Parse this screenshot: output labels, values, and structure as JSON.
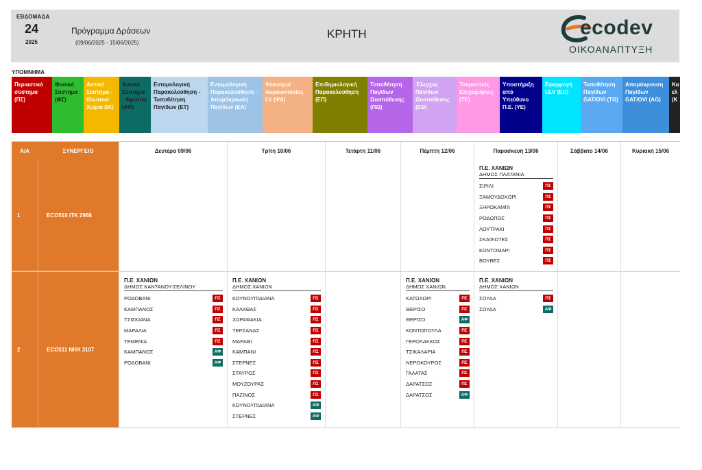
{
  "header": {
    "week_label": "ΕΒΔΟΜΑΔΑ",
    "week_number": "24",
    "year": "2025",
    "program_title": "Πρόγραμμα Δράσεων",
    "date_range": "(09/06/2025 - 15/06/2025)",
    "region": "ΚΡΗΤΗ",
    "logo_text": "ecodev",
    "logo_sub": "ΟΙΚΟΑΝΑΠΤΥΞΗ"
  },
  "legend": {
    "title": "ΥΠΟΜΝΗΜΑ",
    "items": [
      {
        "label": "Περιαστικό σύστημα (ΠΣ)",
        "color": "#c00000",
        "text_dark": false
      },
      {
        "label": "Φυσικό Σύστημα (ΦΣ)",
        "color": "#2ebd2e",
        "text_dark": true
      },
      {
        "label": "Αστικό Σύστημα - Ιδιωτικοί Χώροι (ΙΧ)",
        "color": "#f5b800",
        "text_dark": false
      },
      {
        "label": "Αστικό Σύστημα - Φρεάτια (ΑΦ)",
        "color": "#0c6b63",
        "text_dark": true
      },
      {
        "label": "Εντομολογική Παρακολούθηση - Τοποθέτηση Παγίδων (ΕΤ)",
        "color": "#bdd7ee",
        "text_dark": true
      },
      {
        "label": "Εντομολογική Παρακολούθηση - Απομάκρυνση Παγίδων (ΕΑ)",
        "color": "#9dc3e6",
        "text_dark": false
      },
      {
        "label": "Ψεκασμοί Ακμαιοκτονίας LV (ΨΑ)",
        "color": "#f4b183",
        "text_dark": false
      },
      {
        "label": "Επιδημιολογική Παρακολούθηση (ΕΠ)",
        "color": "#7f7f00",
        "text_dark": false
      },
      {
        "label": "Τοποθέτηση Παγίδων Ωοαπόθεσης (ΠΩ)",
        "color": "#b565e8",
        "text_dark": false
      },
      {
        "label": "Έλεγχος Παγίδων Ωοαπόθεσης (ΕΘ)",
        "color": "#d0a4f0",
        "text_dark": false
      },
      {
        "label": "Τουριστικές Επιχειρήσεις (ΤΕ)",
        "color": "#ff99e6",
        "text_dark": false
      },
      {
        "label": "Υποστήριξη από Υπεύθυνο Π.Ε. (ΥΕ)",
        "color": "#00008b",
        "text_dark": false
      },
      {
        "label": "Εφαρμογή ULV (EU)",
        "color": "#00e5ff",
        "text_dark": false
      },
      {
        "label": "Τοποθέτηση Παγίδων GAT/OVI (TG)",
        "color": "#5aa9f0",
        "text_dark": false
      },
      {
        "label": "Απομάκρυνση Παγίδων GAT/OVI (AG)",
        "color": "#3d8fdb",
        "text_dark": false
      },
      {
        "label": "Κα ελ (Κ",
        "color": "#222222",
        "text_dark": false
      }
    ]
  },
  "badge_colors": {
    "ΠΣ": "#c00000",
    "ΑΦ": "#0c6b63"
  },
  "table": {
    "headers": [
      "Α/Α",
      "ΣΥΝΕΡΓΕΙΟ",
      "Δευτέρα 09/06",
      "Τρίτη 10/06",
      "Τετάρτη 11/06",
      "Πέμπτη 12/06",
      "Παρασκευή 13/06",
      "Σάββατο 14/06",
      "Κυριακή 15/06"
    ],
    "rows": [
      {
        "aa": "1",
        "team": "ECO510  ΙΤΚ 2968",
        "days": [
          null,
          null,
          null,
          null,
          {
            "pe": "Π.Ε. ΧΑΝΙΩΝ",
            "dimos": "ΔΗΜΟΣ ΠΛΑΤΑΝΙΑ",
            "items": [
              [
                "ΣΙΡΙΛΙ",
                "ΠΣ"
              ],
              [
                "ΞΑΜΟΥΔΟΧΩΡΙ",
                "ΠΣ"
              ],
              [
                "ΞΗΡΟΚΑΜΠΙ",
                "ΠΣ"
              ],
              [
                "ΡΟΔΩΠΟΣ",
                "ΠΣ"
              ],
              [
                "ΛΟΥΤΡΑΚΙ",
                "ΠΣ"
              ],
              [
                "ΣΚΑΦΙΩΤΕΣ",
                "ΠΣ"
              ],
              [
                "ΚΟΝΤΟΜΑΡΙ",
                "ΠΣ"
              ],
              [
                "ΒΟΥΒΕΣ",
                "ΠΣ"
              ]
            ]
          },
          null,
          null
        ]
      },
      {
        "aa": "2",
        "team": "ECO511  ΝΗΧ 3107",
        "days": [
          {
            "pe": "Π.Ε. ΧΑΝΙΩΝ",
            "dimos": "ΔΗΜΟΣ ΚΑΝΤΑΝΟΥ-ΣΕΛΙΝΟΥ",
            "items": [
              [
                "ΡΟΔΟΒΑΝΙ",
                "ΠΣ"
              ],
              [
                "ΚΑΜΠΑΝΟΣ",
                "ΠΣ"
              ],
              [
                "ΤΣΙΣΚΙΑΝΑ",
                "ΠΣ"
              ],
              [
                "ΜΑΡΑΛΙΑ",
                "ΠΣ"
              ],
              [
                "ΤΕΜΕΝΙΑ",
                "ΠΣ"
              ],
              [
                "ΚΑΜΠΑΝΟΣ",
                "ΑΦ"
              ],
              [
                "ΡΟΔΟΒΑΝΙ",
                "ΑΦ"
              ]
            ]
          },
          {
            "pe": "Π.Ε. ΧΑΝΙΩΝ",
            "dimos": "ΔΗΜΟΣ ΧΑΝΙΩΝ",
            "items": [
              [
                "ΚΟΥΝΟΥΠΙΔΙΑΝΑ",
                "ΠΣ"
              ],
              [
                "ΚΑΛΑΘΑΣ",
                "ΠΣ"
              ],
              [
                "ΧΩΡΑΦΑΚΙΑ",
                "ΠΣ"
              ],
              [
                "ΤΕΡΣΑΝΑΣ",
                "ΠΣ"
              ],
              [
                "ΜΑΡΑΘΙ",
                "ΠΣ"
              ],
              [
                "ΚΑΜΠΑΝΙ",
                "ΠΣ"
              ],
              [
                "ΣΤΕΡΝΕΣ",
                "ΠΣ"
              ],
              [
                "ΣΤΑΥΡΟΣ",
                "ΠΣ"
              ],
              [
                "ΜΟΥΖΟΥΡΑΣ",
                "ΠΣ"
              ],
              [
                "ΠΑΖΙΝΟΣ",
                "ΠΣ"
              ],
              [
                "ΚΟΥΝΟΥΠΙΔΙΑΝΑ",
                "ΑΦ"
              ],
              [
                "ΣΤΕΡΝΕΣ",
                "ΑΦ"
              ]
            ]
          },
          null,
          {
            "pe": "Π.Ε. ΧΑΝΙΩΝ",
            "dimos": "ΔΗΜΟΣ ΧΑΝΙΩΝ",
            "items": [
              [
                "ΚΑΤΩΧΩΡΙ",
                "ΠΣ"
              ],
              [
                "ΘΕΡΙΣΟ",
                "ΠΣ"
              ],
              [
                "ΘΕΡΙΣΟ",
                "ΑΦ"
              ],
              [
                "ΚΟΝΤΟΠΟΥΛΑ",
                "ΠΣ"
              ],
              [
                "ΓΕΡΟΛΑΚΚΟΣ",
                "ΠΣ"
              ],
              [
                "ΤΣΙΚΑΛΑΡΙΑ",
                "ΠΣ"
              ],
              [
                "ΝΕΡΟΚΟΥΡΟΣ",
                "ΠΣ"
              ],
              [
                "ΓΑΛΑΤΑΣ",
                "ΠΣ"
              ],
              [
                "ΔΑΡΑΤΣΟΣ",
                "ΠΣ"
              ],
              [
                "ΔΑΡΑΤΣΟΣ",
                "ΑΦ"
              ]
            ]
          },
          {
            "pe": "Π.Ε. ΧΑΝΙΩΝ",
            "dimos": "ΔΗΜΟΣ ΧΑΝΙΩΝ",
            "items": [
              [
                "ΣΟΥΔΑ",
                "ΠΣ"
              ],
              [
                "ΣΟΥΔΑ",
                "ΑΦ"
              ]
            ]
          },
          null,
          null
        ]
      }
    ]
  }
}
